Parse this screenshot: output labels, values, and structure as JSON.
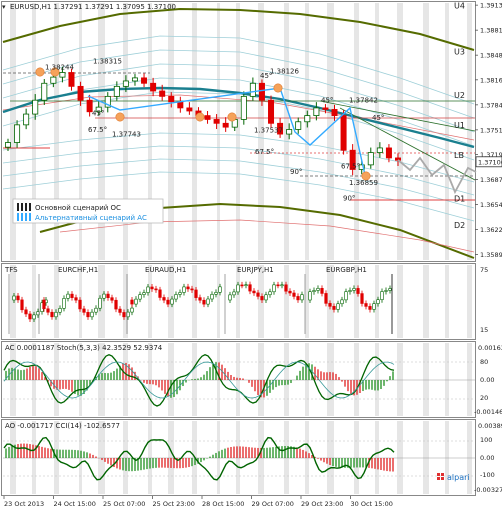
{
  "colors": {
    "bull": "#006400",
    "bear": "#e00000",
    "ma": "#1a7f8f",
    "band_outer": "#556b00",
    "bands": "#9ecfd8",
    "scenario_alt": "#33aaff",
    "red_line": "#e04040",
    "ac_pos": "#1e8f1e",
    "ac_neg": "#e02020",
    "ao_line": "#006400"
  },
  "header": {
    "symbol_line": "EURUSD,H1  1.37291 1.37291 1.37095 1.37100"
  },
  "price_axis": {
    "ticks": [
      "1.39135",
      "1.38810",
      "1.38485",
      "1.38165",
      "1.37840",
      "1.37515",
      "1.37195",
      "1.36870",
      "1.36545",
      "1.36220",
      "1.35895"
    ],
    "current_price": "1.37100",
    "ylim": [
      1.3585,
      1.3915
    ]
  },
  "levels": [
    {
      "label": "U4",
      "price": 1.3913
    },
    {
      "label": "U3",
      "price": 1.3853
    },
    {
      "label": "U2",
      "price": 1.3797
    },
    {
      "label": "U1",
      "price": 1.3758
    },
    {
      "label": "LB",
      "price": 1.3719
    },
    {
      "label": "D1",
      "price": 1.3662
    },
    {
      "label": "D2",
      "price": 1.3628
    }
  ],
  "annotations": [
    {
      "text": "1.38244",
      "x": 45,
      "price": 1.383
    },
    {
      "text": "1.38315",
      "x": 93,
      "price": 1.3838
    },
    {
      "text": "45°",
      "x": 92,
      "price": 1.377
    },
    {
      "text": "1.37743",
      "x": 112,
      "price": 1.3743
    },
    {
      "text": "67.5°",
      "x": 88,
      "price": 1.3749
    },
    {
      "text": "45°",
      "x": 260,
      "price": 1.3819
    },
    {
      "text": "1.38126",
      "x": 270,
      "price": 1.3825
    },
    {
      "text": "1.37537",
      "x": 254,
      "price": 1.3748
    },
    {
      "text": "45°",
      "x": 321,
      "price": 1.3787
    },
    {
      "text": "1.37842",
      "x": 349,
      "price": 1.3787
    },
    {
      "text": "45°",
      "x": 372,
      "price": 1.3764
    },
    {
      "text": "67.5°",
      "x": 255,
      "price": 1.372
    },
    {
      "text": "67.5°",
      "x": 341,
      "price": 1.3701
    },
    {
      "text": "90°",
      "x": 290,
      "price": 1.3694
    },
    {
      "text": "1.36859",
      "x": 349,
      "price": 1.368
    },
    {
      "text": "90°",
      "x": 343,
      "price": 1.366
    }
  ],
  "legend": {
    "main_scenario": "Основной сценарий ОС",
    "alt_scenario": "Альтернативный сценарий АС"
  },
  "mini_panel": {
    "title": "TFS",
    "items": [
      "EURCHF,H1",
      "EURAUD,H1",
      "EURJPY,H1",
      "EURGBP,H1"
    ],
    "tick_75": "75",
    "tick_15": "15"
  },
  "ac_panel": {
    "title": "AC 0.0001187  Stoch(5,3,3) 42.3529 52.9374",
    "ticks": [
      "0.00163",
      "80",
      "0.00",
      "20",
      "-0.00146"
    ]
  },
  "ao_panel": {
    "title": "AO -0.001717  CCI(14) -102.6577",
    "ticks": [
      "0.00389",
      "100",
      "0.00",
      "-100",
      "-0.00327"
    ]
  },
  "time_axis": [
    "23 Oct 2013",
    "24 Oct 15:00",
    "25 Oct 07:00",
    "25 Oct 23:00",
    "28 Oct 15:00",
    "29 Oct 07:00",
    "29 Oct 23:00",
    "30 Oct 15:00"
  ],
  "branding": {
    "logo_text": "alpari"
  },
  "chart_data": {
    "type": "candlestick",
    "symbol": "EURUSD",
    "timeframe": "H1",
    "ylim": [
      1.3585,
      1.3915
    ],
    "key_points": [
      {
        "label": "1.38244",
        "value": 1.38244
      },
      {
        "label": "1.38315",
        "value": 1.38315
      },
      {
        "label": "1.37743",
        "value": 1.37743
      },
      {
        "label": "1.38126",
        "value": 1.38126
      },
      {
        "label": "1.37537",
        "value": 1.37537
      },
      {
        "label": "1.37842",
        "value": 1.37842
      },
      {
        "label": "1.36859",
        "value": 1.36859
      }
    ],
    "close_path": [
      1.3735,
      1.3758,
      1.3772,
      1.379,
      1.3812,
      1.382,
      1.3826,
      1.3808,
      1.379,
      1.3775,
      1.3781,
      1.3795,
      1.3808,
      1.3815,
      1.3819,
      1.3812,
      1.3802,
      1.3795,
      1.3788,
      1.378,
      1.3776,
      1.377,
      1.3765,
      1.376,
      1.3755,
      1.3765,
      1.3795,
      1.3812,
      1.379,
      1.376,
      1.3746,
      1.3752,
      1.3762,
      1.377,
      1.378,
      1.3778,
      1.377,
      1.3725,
      1.37,
      1.3706,
      1.3722,
      1.3728,
      1.3715,
      1.3712
    ]
  }
}
